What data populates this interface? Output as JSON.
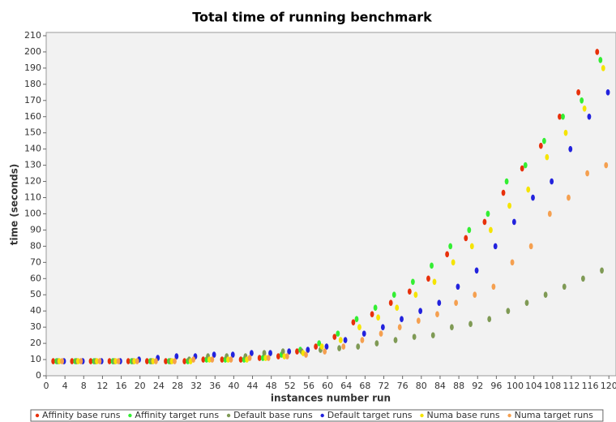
{
  "chart_data": {
    "type": "scatter",
    "title": "Total time of running benchmark",
    "x_label": "instances number run",
    "y_label": "time (seconds)",
    "xlim": [
      0,
      121
    ],
    "ylim": [
      0,
      212
    ],
    "xticks": [
      0,
      4,
      8,
      12,
      16,
      20,
      24,
      28,
      32,
      36,
      40,
      44,
      48,
      52,
      56,
      60,
      64,
      68,
      72,
      76,
      80,
      84,
      88,
      92,
      96,
      100,
      104,
      108,
      112,
      116,
      120
    ],
    "yticks": [
      0,
      10,
      20,
      30,
      40,
      50,
      60,
      70,
      80,
      90,
      100,
      110,
      120,
      130,
      140,
      150,
      160,
      170,
      180,
      190,
      200,
      210
    ],
    "grid": false,
    "legend": "bottom",
    "series": [
      {
        "name": "Affinity base runs",
        "color": "#e8300a",
        "x": [
          1.5,
          5.5,
          9.5,
          13.5,
          17.5,
          21.5,
          25.5,
          29.5,
          33.5,
          37.5,
          41.5,
          45.5,
          49.5,
          53.5,
          57.5,
          61.5,
          65.5,
          69.5,
          73.5,
          77.5,
          81.5,
          85.5,
          89.5,
          93.5,
          97.5,
          101.5,
          105.5,
          109.5,
          113.5,
          117.5
        ],
        "values": [
          9,
          9,
          9,
          9,
          9,
          9,
          9,
          9,
          10,
          10,
          10,
          11,
          12,
          15,
          18,
          24,
          33,
          38,
          45,
          52,
          60,
          75,
          85,
          95,
          113,
          128,
          142,
          160,
          175,
          200
        ]
      },
      {
        "name": "Affinity target runs",
        "color": "#33ee33",
        "x": [
          2.2,
          6.2,
          10.2,
          14.2,
          18.2,
          22.2,
          26.2,
          30.2,
          34.2,
          38.2,
          42.2,
          46.2,
          50.2,
          54.2,
          58.2,
          62.2,
          66.2,
          70.2,
          74.2,
          78.2,
          82.2,
          86.2,
          90.2,
          94.2,
          98.2,
          102.2,
          106.2,
          110.2,
          114.2,
          118.2
        ],
        "values": [
          9,
          9,
          9,
          9,
          9,
          9,
          9,
          9,
          10,
          10,
          10,
          11,
          13,
          16,
          20,
          26,
          35,
          42,
          50,
          58,
          68,
          80,
          90,
          100,
          120,
          130,
          145,
          160,
          170,
          195
        ]
      },
      {
        "name": "Default base runs",
        "color": "#7f9a55",
        "x": [
          2.5,
          6.5,
          10.5,
          14.5,
          18.5,
          22.5,
          26.5,
          30.5,
          34.5,
          38.5,
          42.5,
          46.5,
          50.5,
          54.5,
          58.5,
          62.5,
          66.5,
          70.5,
          74.5,
          78.5,
          82.5,
          86.5,
          90.5,
          94.5,
          98.5,
          102.5,
          106.5,
          110.5,
          114.5,
          118.5
        ],
        "values": [
          9,
          9,
          9,
          9,
          9,
          9,
          9,
          10,
          12,
          12,
          12,
          14,
          15,
          15,
          16,
          17,
          18,
          20,
          22,
          24,
          25,
          30,
          32,
          35,
          40,
          45,
          50,
          55,
          60,
          65
        ]
      },
      {
        "name": "Default target runs",
        "color": "#2222dd",
        "x": [
          3.8,
          7.8,
          11.8,
          15.8,
          19.8,
          23.8,
          27.8,
          31.8,
          35.8,
          39.8,
          43.8,
          47.8,
          51.8,
          55.8,
          59.8,
          63.8,
          67.8,
          71.8,
          75.8,
          79.8,
          83.8,
          87.8,
          91.8,
          95.8,
          99.8,
          103.8,
          107.8,
          111.8,
          115.8,
          119.8
        ],
        "values": [
          9,
          9,
          9,
          9,
          10,
          11,
          12,
          12,
          13,
          13,
          14,
          14,
          15,
          16,
          18,
          22,
          26,
          30,
          35,
          40,
          45,
          55,
          65,
          80,
          95,
          110,
          120,
          140,
          160,
          175
        ]
      },
      {
        "name": "Numa base runs",
        "color": "#f5e400",
        "x": [
          2.8,
          6.8,
          10.8,
          14.8,
          18.8,
          22.8,
          26.8,
          30.8,
          34.8,
          38.8,
          42.8,
          46.8,
          50.8,
          54.8,
          58.8,
          62.8,
          66.8,
          70.8,
          74.8,
          78.8,
          82.8,
          86.8,
          90.8,
          94.8,
          98.8,
          102.8,
          106.8,
          110.8,
          114.8,
          118.8
        ],
        "values": [
          9,
          9,
          9,
          9,
          9,
          9,
          9,
          9,
          10,
          10,
          10,
          11,
          12,
          14,
          18,
          22,
          30,
          36,
          42,
          50,
          58,
          70,
          80,
          90,
          105,
          115,
          135,
          150,
          165,
          190
        ]
      },
      {
        "name": "Numa target runs",
        "color": "#f5a050",
        "x": [
          3.4,
          7.4,
          11.4,
          15.4,
          19.4,
          23.4,
          27.4,
          31.4,
          35.4,
          39.4,
          43.4,
          47.4,
          51.4,
          55.4,
          59.4,
          63.4,
          67.4,
          71.4,
          75.4,
          79.4,
          83.4,
          87.4,
          91.4,
          95.4,
          99.4,
          103.4,
          107.4,
          111.4,
          115.4,
          119.4
        ],
        "values": [
          9,
          9,
          9,
          9,
          9,
          9,
          9,
          10,
          10,
          10,
          11,
          11,
          12,
          13,
          15,
          18,
          22,
          26,
          30,
          34,
          38,
          45,
          50,
          55,
          70,
          80,
          100,
          110,
          125,
          130
        ]
      }
    ]
  }
}
